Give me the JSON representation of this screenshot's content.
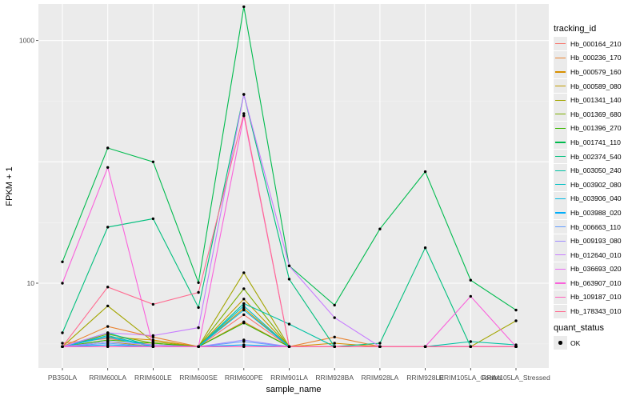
{
  "chart_data": {
    "type": "line",
    "yscale": "log10",
    "ylim": [
      2.0,
      2000
    ],
    "xlabel": "sample_name",
    "ylabel": "FPKM + 1",
    "yticks": [
      10,
      1000
    ],
    "ytick_labels": [
      "10",
      "1000"
    ],
    "categories": [
      "PB350LA",
      "RRIM600LA",
      "RRIM600LE",
      "RRIM600SE",
      "RRIM600PE",
      "RRIM901LA",
      "RRIM928BA",
      "RRIM928LA",
      "RRIM928LE",
      "RRIM105LA_Control",
      "RRIM105LA_Stressed"
    ],
    "series": [
      {
        "name": "Hb_000164_210",
        "color": "#F8766D",
        "values": [
          3.2,
          3.5,
          3.1,
          3.0,
          5.5,
          3.0,
          3.0,
          3.0,
          3.0,
          3.0,
          3.0
        ]
      },
      {
        "name": "Hb_000236_170",
        "color": "#EA8331",
        "values": [
          3.0,
          4.4,
          3.6,
          3.0,
          4.8,
          3.0,
          3.6,
          3.0,
          3.0,
          3.0,
          3.0
        ]
      },
      {
        "name": "Hb_000579_160",
        "color": "#D89000",
        "values": [
          3.0,
          3.6,
          3.4,
          3.0,
          6.2,
          3.0,
          3.2,
          3.0,
          3.0,
          3.0,
          3.0
        ]
      },
      {
        "name": "Hb_000589_080",
        "color": "#C09B00",
        "values": [
          3.0,
          3.3,
          3.0,
          3.0,
          7.4,
          3.0,
          3.0,
          3.0,
          3.0,
          3.0,
          3.0
        ]
      },
      {
        "name": "Hb_001341_140",
        "color": "#A3A500",
        "values": [
          3.0,
          6.5,
          3.3,
          3.0,
          12.2,
          3.0,
          3.0,
          3.0,
          3.0,
          3.0,
          4.9
        ]
      },
      {
        "name": "Hb_001369_680",
        "color": "#7CAE00",
        "values": [
          3.0,
          3.8,
          3.2,
          3.0,
          9.0,
          3.0,
          3.0,
          3.0,
          3.0,
          3.0,
          3.0
        ]
      },
      {
        "name": "Hb_001396_270",
        "color": "#39B600",
        "values": [
          3.0,
          3.4,
          3.2,
          3.0,
          4.7,
          3.0,
          3.0,
          3.0,
          3.0,
          3.0,
          3.0
        ]
      },
      {
        "name": "Hb_001741_110",
        "color": "#00BB4E",
        "values": [
          15,
          130,
          100,
          10.1,
          1900,
          13.9,
          6.6,
          28.0,
          83,
          10.6,
          6.0
        ]
      },
      {
        "name": "Hb_002374_540",
        "color": "#00BF7D",
        "values": [
          3.9,
          29,
          34,
          6.3,
          360,
          10.8,
          3.0,
          3.2,
          19.6,
          3.0,
          3.0
        ]
      },
      {
        "name": "Hb_003050_240",
        "color": "#00C1A3",
        "values": [
          3.0,
          3.9,
          3.0,
          3.0,
          6.8,
          4.6,
          3.0,
          3.0,
          3.0,
          3.3,
          3.1
        ]
      },
      {
        "name": "Hb_003902_080",
        "color": "#00BFC4",
        "values": [
          3.0,
          3.7,
          3.0,
          3.0,
          6.5,
          3.0,
          3.0,
          3.0,
          3.0,
          3.0,
          3.0
        ]
      },
      {
        "name": "Hb_003906_040",
        "color": "#00B9E3",
        "values": [
          3.0,
          3.6,
          3.0,
          3.0,
          6.0,
          3.0,
          3.0,
          3.0,
          3.0,
          3.0,
          3.0
        ]
      },
      {
        "name": "Hb_003988_020",
        "color": "#00ADFA",
        "values": [
          3.0,
          3.1,
          3.0,
          3.0,
          3.1,
          3.0,
          3.0,
          3.0,
          3.0,
          3.0,
          3.0
        ]
      },
      {
        "name": "Hb_006663_110",
        "color": "#619CFF",
        "values": [
          3.0,
          3.2,
          3.0,
          3.0,
          3.3,
          3.0,
          3.0,
          3.0,
          3.0,
          3.0,
          3.0
        ]
      },
      {
        "name": "Hb_009193_080",
        "color": "#9F8CFF",
        "values": [
          3.0,
          3.3,
          3.1,
          3.0,
          3.4,
          3.0,
          3.0,
          3.0,
          3.0,
          3.0,
          3.0
        ]
      },
      {
        "name": "Hb_012640_010",
        "color": "#C77CFF",
        "values": [
          3.0,
          3.9,
          3.7,
          4.3,
          360,
          13.9,
          5.2,
          3.0,
          3.0,
          3.0,
          3.0
        ]
      },
      {
        "name": "Hb_036693_020",
        "color": "#E76BF3",
        "values": [
          3.0,
          3.0,
          3.0,
          3.0,
          3.0,
          3.0,
          3.0,
          3.0,
          3.0,
          3.0,
          3.0
        ]
      },
      {
        "name": "Hb_063907_010",
        "color": "#FA62DB",
        "values": [
          10.0,
          90,
          3.0,
          3.0,
          240,
          3.0,
          3.0,
          3.0,
          3.0,
          7.8,
          3.0
        ]
      },
      {
        "name": "Hb_109187_010",
        "color": "#FF62BC",
        "values": [
          3.0,
          3.0,
          3.0,
          3.0,
          3.0,
          3.0,
          3.0,
          3.0,
          3.0,
          3.0,
          3.0
        ]
      },
      {
        "name": "Hb_178343_010",
        "color": "#FF6C91",
        "values": [
          3.0,
          9.3,
          6.7,
          8.4,
          250,
          3.0,
          3.0,
          3.0,
          3.0,
          3.0,
          3.0
        ]
      }
    ]
  },
  "legend": {
    "title": "tracking_id",
    "quant_title": "quant_status",
    "quant_items": [
      "OK"
    ]
  }
}
